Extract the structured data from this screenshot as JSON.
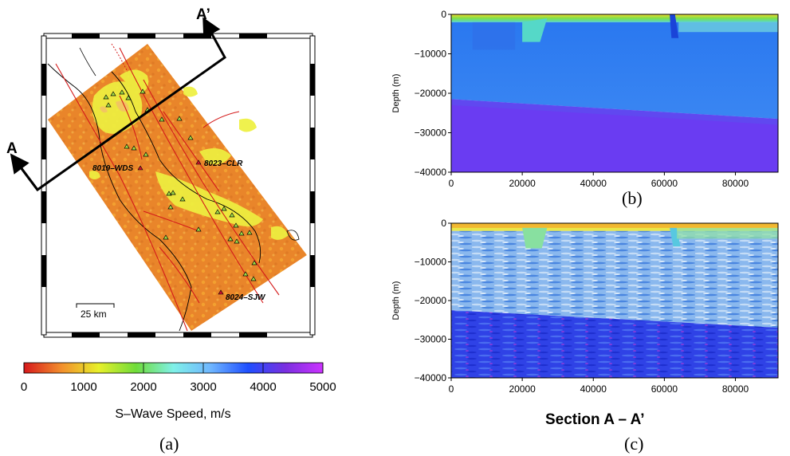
{
  "panel_a": {
    "label": "(a)",
    "section_start": "A",
    "section_end": "A’",
    "scale_bar": "25 km",
    "stations": [
      {
        "name": "8019–WDS"
      },
      {
        "name": "8023–CLR"
      },
      {
        "name": "8024–SJW"
      }
    ],
    "colorbar": {
      "ticks": [
        "0",
        "1000",
        "2000",
        "3000",
        "4000",
        "5000"
      ],
      "title": "S–Wave Speed, m/s",
      "colors": [
        "#d7191c",
        "#f28e2c",
        "#e8f02a",
        "#6fdc3a",
        "#7ff0e8",
        "#6fb6ff",
        "#1f4fff",
        "#7a2fe0",
        "#cc33ff"
      ]
    }
  },
  "panel_b": {
    "label": "(b)",
    "ylabel": "Depth (m)"
  },
  "panel_c": {
    "label": "(c)",
    "ylabel": "Depth (m)"
  },
  "section_title": "Section A – A’",
  "chart_data": [
    {
      "type": "heatmap",
      "panel": "(b)",
      "xlabel": "",
      "ylabel": "Depth (m)",
      "xlim": [
        0,
        92000
      ],
      "ylim": [
        -40000,
        0
      ],
      "x_ticks": [
        0,
        20000,
        40000,
        60000,
        80000
      ],
      "y_ticks": [
        0,
        -10000,
        -20000,
        -30000,
        -40000
      ],
      "x_tick_labels": [
        "0",
        "20000",
        "40000",
        "60000",
        "80000"
      ],
      "y_tick_labels": [
        "0",
        "−10000",
        "−20000",
        "−30000",
        "−40000"
      ],
      "layers": [
        {
          "x": [
            0,
            92000
          ],
          "top": [
            0,
            0
          ],
          "bottom": [
            -2000,
            -2000
          ],
          "color": "#f0e02a"
        },
        {
          "x": [
            0,
            92000
          ],
          "top": [
            -2000,
            -2000
          ],
          "bottom": [
            -21500,
            -26500
          ],
          "color": "#3b7cf0"
        },
        {
          "x": [
            0,
            92000
          ],
          "top": [
            -21500,
            -26500
          ],
          "bottom": [
            -40000,
            -40000
          ],
          "color": "#6a3cf2"
        }
      ]
    },
    {
      "type": "heatmap",
      "panel": "(c)",
      "xlabel": "",
      "ylabel": "Depth (m)",
      "xlim": [
        0,
        92000
      ],
      "ylim": [
        -40000,
        0
      ],
      "x_ticks": [
        0,
        20000,
        40000,
        60000,
        80000
      ],
      "y_ticks": [
        0,
        -10000,
        -20000,
        -30000,
        -40000
      ],
      "x_tick_labels": [
        "0",
        "20000",
        "40000",
        "60000",
        "80000"
      ],
      "y_tick_labels": [
        "0",
        "−10000",
        "−20000",
        "−30000",
        "−40000"
      ],
      "layers": [
        {
          "x": [
            0,
            92000
          ],
          "top": [
            0,
            0
          ],
          "bottom": [
            -2000,
            -2000
          ],
          "color": "#e8e84a"
        },
        {
          "x": [
            0,
            92000
          ],
          "top": [
            -2000,
            -2000
          ],
          "bottom": [
            -22500,
            -27000
          ],
          "color": "#7fb4ee"
        },
        {
          "x": [
            0,
            92000
          ],
          "top": [
            -22500,
            -27000
          ],
          "bottom": [
            -40000,
            -40000
          ],
          "color": "#2a40ee"
        }
      ]
    }
  ]
}
